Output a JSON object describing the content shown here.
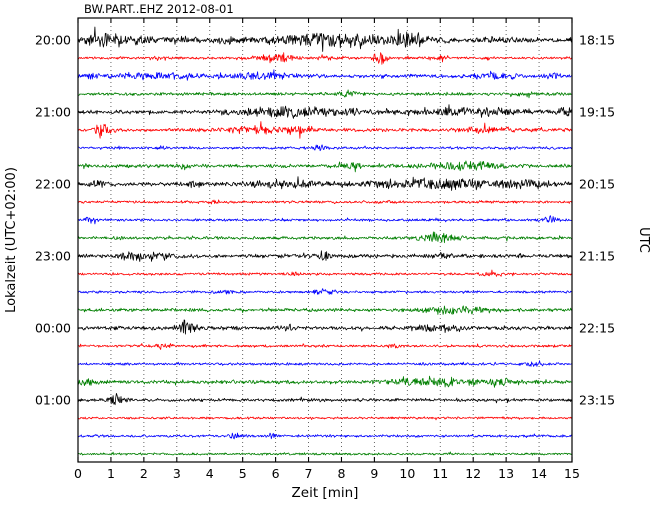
{
  "chart_data": {
    "type": "line",
    "subtype": "helicorder-dayplot",
    "title": "BW.PART..EHZ 2012-08-01",
    "xlabel": "Zeit  [min]",
    "ylabel_left": "Lokalzeit (UTC+02:00)",
    "ylabel_right": "UTC",
    "xlim": [
      0,
      15
    ],
    "x_ticks": [
      0,
      1,
      2,
      3,
      4,
      5,
      6,
      7,
      8,
      9,
      10,
      11,
      12,
      13,
      14,
      15
    ],
    "minutes_per_line": 15,
    "grid": "vertical-dotted",
    "trace_colors_cycle": [
      "#000000",
      "#ff0000",
      "#0000ff",
      "#007f00"
    ],
    "left_axis_labels": [
      "20:00",
      "21:00",
      "22:00",
      "23:00",
      "00:00",
      "01:00"
    ],
    "right_axis_labels": [
      "18:15",
      "19:15",
      "20:15",
      "21:15",
      "22:15",
      "23:15"
    ],
    "traces": [
      {
        "color": "#000000",
        "left_label": "20:00",
        "right_label": "18:15",
        "base": 2.2,
        "bursts": [
          [
            0.0,
            1.6,
            4.5
          ],
          [
            4.3,
            4.7,
            3.0
          ],
          [
            6.3,
            9.2,
            4.5
          ],
          [
            9.7,
            10.4,
            5.0
          ],
          [
            12.5,
            13.0,
            2.5
          ]
        ]
      },
      {
        "color": "#ff0000",
        "left_label": "",
        "right_label": "",
        "base": 1.0,
        "bursts": [
          [
            2.2,
            2.5,
            2.5
          ],
          [
            5.6,
            6.4,
            3.5
          ],
          [
            7.4,
            7.7,
            3.0
          ],
          [
            9.0,
            9.3,
            6.0
          ],
          [
            10.9,
            11.2,
            2.5
          ]
        ]
      },
      {
        "color": "#0000ff",
        "left_label": "",
        "right_label": "",
        "base": 1.4,
        "bursts": [
          [
            0.3,
            0.6,
            2.0
          ],
          [
            1.5,
            3.2,
            2.5
          ],
          [
            5.0,
            6.5,
            2.5
          ],
          [
            12.0,
            13.2,
            2.5
          ],
          [
            14.3,
            14.7,
            2.5
          ]
        ]
      },
      {
        "color": "#007f00",
        "left_label": "",
        "right_label": "",
        "base": 1.2,
        "bursts": [
          [
            8.0,
            8.4,
            3.0
          ],
          [
            13.4,
            13.7,
            2.0
          ]
        ]
      },
      {
        "color": "#000000",
        "left_label": "21:00",
        "right_label": "19:15",
        "base": 1.6,
        "bursts": [
          [
            5.3,
            7.6,
            4.0
          ],
          [
            8.2,
            8.5,
            2.0
          ],
          [
            10.8,
            13.2,
            3.0
          ],
          [
            14.6,
            15.0,
            2.5
          ]
        ]
      },
      {
        "color": "#ff0000",
        "left_label": "",
        "right_label": "",
        "base": 1.3,
        "bursts": [
          [
            0.5,
            1.0,
            4.5
          ],
          [
            4.7,
            6.3,
            3.0
          ],
          [
            6.6,
            7.1,
            3.5
          ],
          [
            11.9,
            13.1,
            2.5
          ]
        ]
      },
      {
        "color": "#0000ff",
        "left_label": "",
        "right_label": "",
        "base": 1.0,
        "bursts": [
          [
            2.4,
            2.7,
            2.0
          ],
          [
            7.2,
            7.5,
            2.5
          ]
        ]
      },
      {
        "color": "#007f00",
        "left_label": "",
        "right_label": "",
        "base": 1.4,
        "bursts": [
          [
            3.0,
            3.3,
            2.0
          ],
          [
            8.0,
            8.6,
            2.5
          ],
          [
            10.9,
            12.6,
            3.5
          ]
        ]
      },
      {
        "color": "#000000",
        "left_label": "22:00",
        "right_label": "20:15",
        "base": 1.6,
        "bursts": [
          [
            0.4,
            0.8,
            2.5
          ],
          [
            3.4,
            3.7,
            2.5
          ],
          [
            5.4,
            7.1,
            3.0
          ],
          [
            9.4,
            12.1,
            4.5
          ],
          [
            12.9,
            14.2,
            3.0
          ]
        ]
      },
      {
        "color": "#ff0000",
        "left_label": "",
        "right_label": "",
        "base": 1.0,
        "bursts": [
          [
            4.0,
            4.3,
            1.5
          ],
          [
            9.1,
            9.4,
            1.5
          ]
        ]
      },
      {
        "color": "#0000ff",
        "left_label": "",
        "right_label": "",
        "base": 1.0,
        "bursts": [
          [
            0.2,
            0.5,
            2.0
          ],
          [
            14.1,
            14.5,
            2.5
          ]
        ]
      },
      {
        "color": "#007f00",
        "left_label": "",
        "right_label": "",
        "base": 1.2,
        "bursts": [
          [
            10.4,
            11.4,
            4.0
          ]
        ]
      },
      {
        "color": "#000000",
        "left_label": "23:00",
        "right_label": "21:15",
        "base": 1.5,
        "bursts": [
          [
            1.4,
            2.6,
            3.5
          ],
          [
            7.2,
            7.6,
            3.5
          ],
          [
            10.9,
            11.3,
            2.5
          ]
        ]
      },
      {
        "color": "#ff0000",
        "left_label": "",
        "right_label": "",
        "base": 1.0,
        "bursts": [
          [
            6.4,
            6.7,
            1.8
          ],
          [
            12.4,
            12.8,
            1.8
          ]
        ]
      },
      {
        "color": "#0000ff",
        "left_label": "",
        "right_label": "",
        "base": 1.0,
        "bursts": [
          [
            4.4,
            4.7,
            2.0
          ],
          [
            7.2,
            7.7,
            2.8
          ]
        ]
      },
      {
        "color": "#007f00",
        "left_label": "",
        "right_label": "",
        "base": 1.3,
        "bursts": [
          [
            10.7,
            12.3,
            3.0
          ]
        ]
      },
      {
        "color": "#000000",
        "left_label": "00:00",
        "right_label": "22:15",
        "base": 1.5,
        "bursts": [
          [
            3.1,
            3.6,
            5.0
          ],
          [
            6.2,
            6.5,
            2.5
          ],
          [
            10.4,
            11.6,
            2.8
          ]
        ]
      },
      {
        "color": "#ff0000",
        "left_label": "",
        "right_label": "",
        "base": 1.0,
        "bursts": [
          [
            2.4,
            2.8,
            2.2
          ],
          [
            9.4,
            9.7,
            1.8
          ]
        ]
      },
      {
        "color": "#0000ff",
        "left_label": "",
        "right_label": "",
        "base": 1.0,
        "bursts": [
          [
            13.7,
            14.1,
            2.5
          ]
        ]
      },
      {
        "color": "#007f00",
        "left_label": "",
        "right_label": "",
        "base": 1.5,
        "bursts": [
          [
            0.1,
            0.5,
            2.5
          ],
          [
            9.9,
            12.1,
            3.5
          ],
          [
            12.7,
            13.1,
            2.5
          ]
        ]
      },
      {
        "color": "#000000",
        "left_label": "01:00",
        "right_label": "23:15",
        "base": 1.2,
        "bursts": [
          [
            0.9,
            1.3,
            5.0
          ]
        ]
      },
      {
        "color": "#ff0000",
        "left_label": "",
        "right_label": "",
        "base": 0.9,
        "bursts": []
      },
      {
        "color": "#0000ff",
        "left_label": "",
        "right_label": "",
        "base": 1.0,
        "bursts": [
          [
            4.6,
            4.9,
            2.2
          ],
          [
            5.8,
            6.0,
            1.5
          ]
        ]
      },
      {
        "color": "#007f00",
        "left_label": "",
        "right_label": "",
        "base": 0.9,
        "bursts": []
      }
    ]
  }
}
